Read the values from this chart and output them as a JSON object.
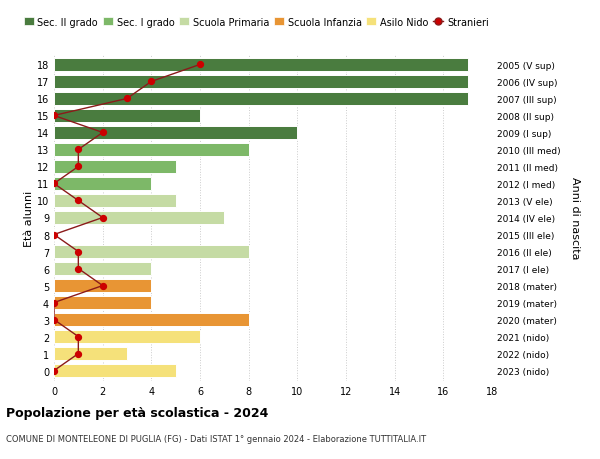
{
  "ages": [
    0,
    1,
    2,
    3,
    4,
    5,
    6,
    7,
    8,
    9,
    10,
    11,
    12,
    13,
    14,
    15,
    16,
    17,
    18
  ],
  "right_labels": [
    "2023 (nido)",
    "2022 (nido)",
    "2021 (nido)",
    "2020 (mater)",
    "2019 (mater)",
    "2018 (mater)",
    "2017 (I ele)",
    "2016 (II ele)",
    "2015 (III ele)",
    "2014 (IV ele)",
    "2013 (V ele)",
    "2012 (I med)",
    "2011 (II med)",
    "2010 (III med)",
    "2009 (I sup)",
    "2008 (II sup)",
    "2007 (III sup)",
    "2006 (IV sup)",
    "2005 (V sup)"
  ],
  "bar_values": [
    5,
    3,
    6,
    8,
    4,
    4,
    4,
    8,
    0,
    7,
    5,
    4,
    5,
    8,
    10,
    6,
    17,
    17,
    17
  ],
  "bar_colors": [
    "#f5e17a",
    "#f5e17a",
    "#f5e17a",
    "#e89534",
    "#e89534",
    "#e89534",
    "#c5dba4",
    "#c5dba4",
    "#c5dba4",
    "#c5dba4",
    "#c5dba4",
    "#7db868",
    "#7db868",
    "#7db868",
    "#4a7c3f",
    "#4a7c3f",
    "#4a7c3f",
    "#4a7c3f",
    "#4a7c3f"
  ],
  "stranieri": [
    0,
    1,
    1,
    0,
    0,
    2,
    1,
    1,
    0,
    2,
    1,
    0,
    1,
    1,
    2,
    0,
    3,
    4,
    6
  ],
  "legend_labels": [
    "Sec. II grado",
    "Sec. I grado",
    "Scuola Primaria",
    "Scuola Infanzia",
    "Asilo Nido",
    "Stranieri"
  ],
  "legend_colors": [
    "#4a7c3f",
    "#7db868",
    "#c5dba4",
    "#e89534",
    "#f5e17a",
    "#cc0000"
  ],
  "title": "Popolazione per età scolastica - 2024",
  "subtitle": "COMUNE DI MONTELEONE DI PUGLIA (FG) - Dati ISTAT 1° gennaio 2024 - Elaborazione TUTTITALIA.IT",
  "ylabel": "Età alunni",
  "right_ylabel": "Anni di nascita",
  "xlim_max": 18,
  "background_color": "#ffffff",
  "grid_color": "#cccccc",
  "bar_height": 0.75,
  "stranieri_line_color": "#8b1a1a",
  "stranieri_dot_color": "#cc0000"
}
